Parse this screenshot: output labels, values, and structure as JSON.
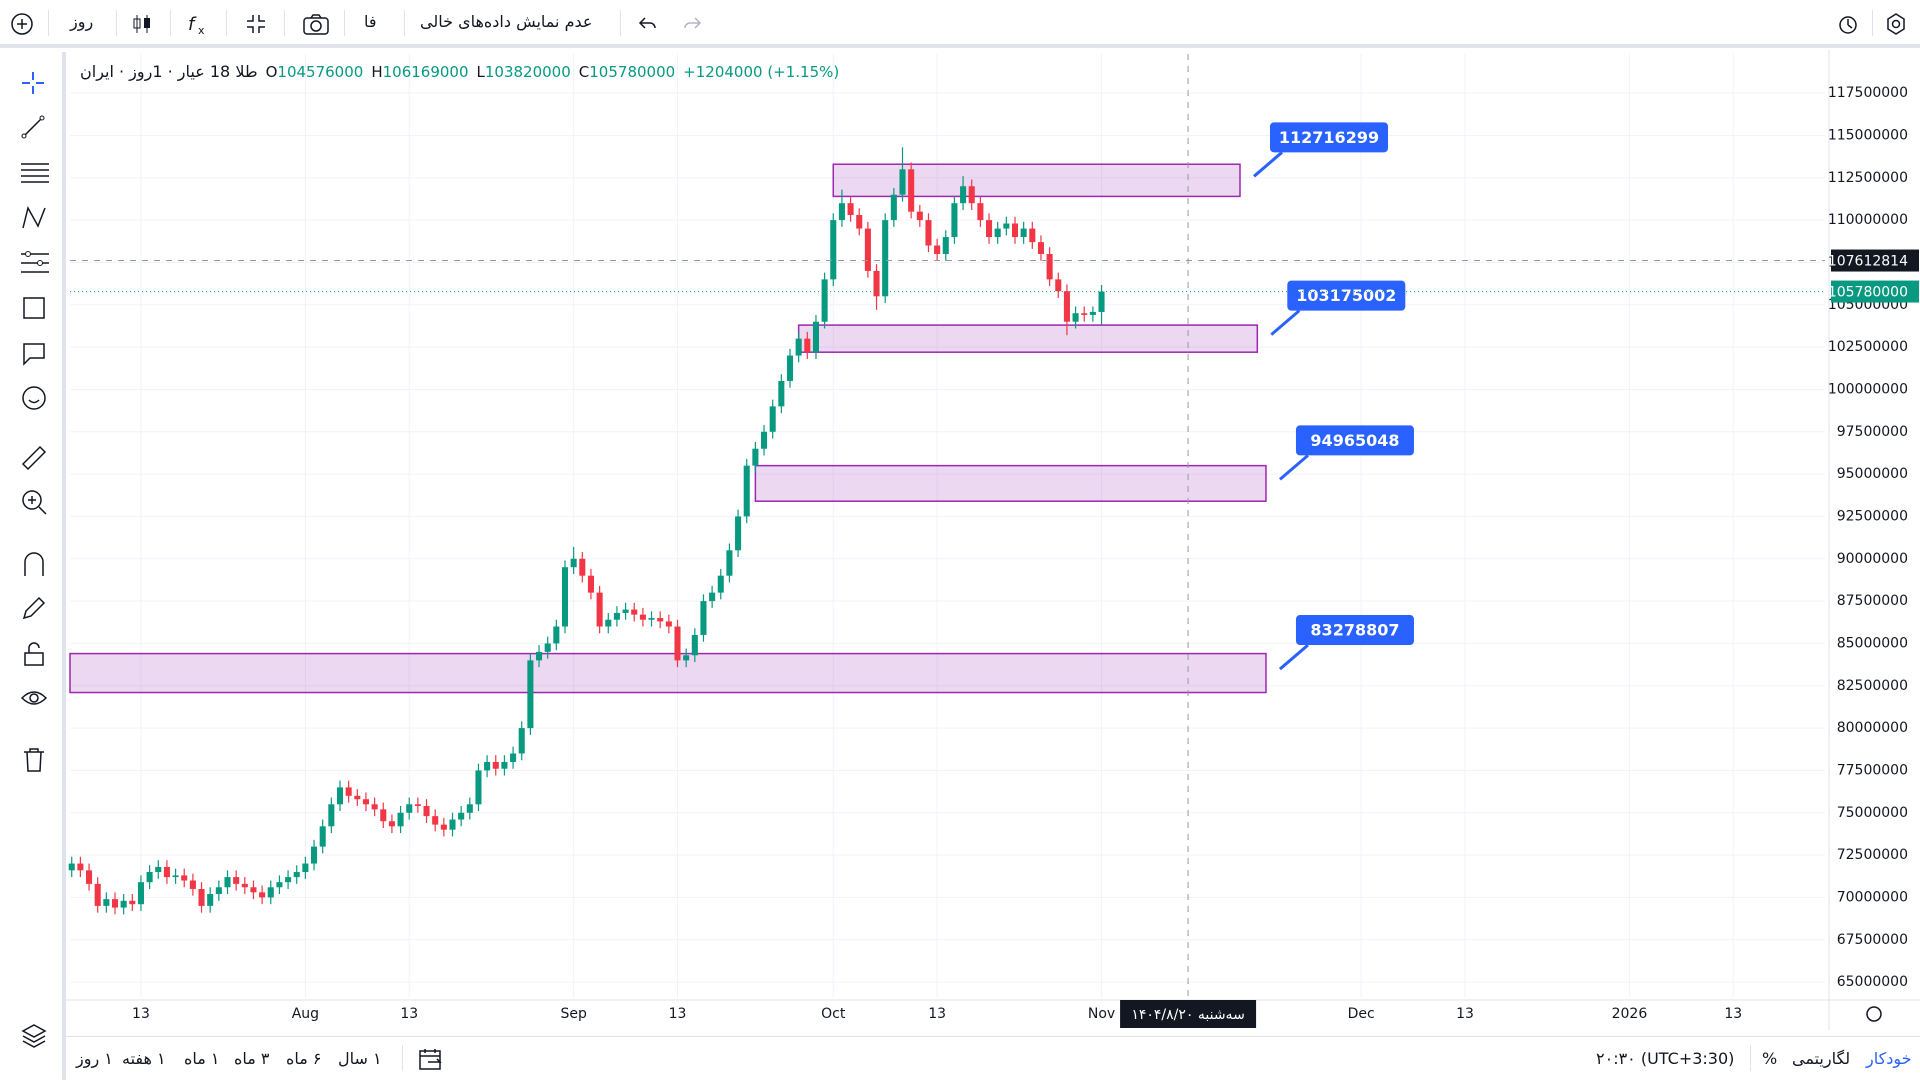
{
  "toolbar": {
    "interval": "روز",
    "language": "فا",
    "empty_data": "عدم نمایش داده‌های خالی"
  },
  "legend": {
    "title": "طلا 18 عیار · 1روز · ایران",
    "o": "O",
    "h": "H",
    "l": "L",
    "c": "C",
    "change": "+1204000 (+1.15%)"
  },
  "chart_data": {
    "type": "candlestick",
    "up_color": "#089981",
    "down_color": "#f23645",
    "x": [
      4,
      5,
      6,
      7,
      8,
      9,
      10,
      11,
      12,
      13,
      14,
      15,
      16,
      17,
      18,
      19,
      20,
      21,
      22,
      23,
      24,
      25,
      26,
      27,
      28,
      29,
      30,
      31,
      32,
      33,
      34,
      35,
      36,
      37,
      38,
      39,
      40,
      41,
      42,
      43,
      44,
      45,
      46,
      47,
      48,
      49,
      50,
      51,
      52,
      53,
      54,
      55,
      56,
      57,
      58,
      59,
      60,
      61,
      62,
      63,
      64,
      65,
      66,
      67,
      68,
      69,
      70,
      71,
      72,
      73,
      74,
      75,
      76,
      77,
      78,
      79,
      80,
      81,
      82,
      83,
      84,
      85,
      86,
      87,
      88,
      89,
      90,
      91,
      92,
      93,
      94,
      95,
      96,
      97,
      98,
      99,
      100,
      101,
      102,
      103,
      104,
      105,
      106,
      107,
      108,
      109,
      110,
      111,
      112,
      113,
      114,
      115,
      116,
      117,
      118,
      119,
      120,
      121,
      122,
      123
    ],
    "open": [
      71600000,
      72000000,
      71600000,
      70800000,
      69500000,
      69900000,
      69400000,
      69800000,
      69600000,
      70900000,
      71500000,
      71800000,
      71200000,
      71300000,
      71000000,
      70500000,
      69500000,
      70200000,
      70600000,
      71200000,
      70800000,
      70600000,
      70300000,
      70000000,
      70600000,
      70900000,
      71200000,
      71500000,
      72000000,
      73000000,
      74200000,
      75500000,
      76500000,
      76000000,
      75800000,
      75500000,
      75200000,
      74500000,
      74200000,
      75000000,
      75500000,
      75400000,
      74800000,
      74300000,
      74000000,
      74600000,
      75000000,
      75500000,
      77500000,
      78000000,
      77600000,
      78000000,
      78500000,
      80000000,
      84000000,
      84500000,
      85000000,
      86000000,
      89500000,
      90000000,
      89000000,
      88000000,
      86000000,
      86400000,
      86800000,
      87000000,
      86700000,
      86400000,
      86500000,
      86300000,
      86000000,
      84000000,
      84300000,
      85500000,
      87500000,
      88000000,
      89000000,
      90500000,
      92500000,
      95500000,
      96500000,
      97500000,
      99000000,
      100500000,
      102000000,
      103000000,
      102200000,
      104000000,
      106500000,
      110000000,
      111000000,
      110300000,
      109500000,
      107000000,
      105500000,
      110000000,
      111500000,
      113000000,
      110500000,
      110000000,
      108500000,
      108000000,
      109000000,
      111000000,
      112000000,
      111000000,
      110000000,
      109000000,
      109500000,
      109800000,
      109000000,
      109500000,
      108700000,
      108000000,
      106500000,
      105800000,
      104000000,
      104500000,
      104400000,
      104576000
    ],
    "high": [
      72400000,
      72400000,
      72000000,
      71200000,
      70300000,
      70300000,
      70200000,
      70200000,
      71300000,
      71900000,
      72200000,
      72200000,
      71700000,
      71700000,
      71400000,
      70900000,
      70600000,
      71000000,
      71600000,
      71600000,
      71200000,
      71000000,
      70700000,
      71000000,
      71300000,
      71600000,
      71900000,
      72400000,
      73400000,
      74600000,
      75900000,
      76900000,
      76900000,
      76400000,
      76200000,
      75900000,
      75600000,
      74900000,
      75400000,
      75900000,
      75900000,
      75800000,
      75200000,
      74700000,
      75000000,
      75400000,
      75900000,
      77900000,
      78400000,
      78400000,
      78400000,
      78900000,
      80400000,
      84400000,
      84900000,
      85400000,
      86400000,
      89900000,
      90700000,
      90400000,
      89400000,
      88400000,
      86800000,
      87200000,
      87400000,
      87400000,
      87100000,
      86900000,
      86900000,
      86700000,
      86400000,
      84700000,
      85900000,
      87900000,
      88400000,
      89400000,
      90900000,
      92900000,
      95900000,
      96900000,
      97900000,
      99400000,
      100900000,
      102400000,
      103400000,
      103400000,
      104400000,
      106900000,
      110400000,
      111800000,
      111400000,
      110700000,
      109900000,
      107400000,
      110400000,
      111900000,
      114300000,
      113400000,
      110900000,
      110400000,
      108900000,
      109400000,
      111400000,
      112600000,
      112400000,
      111400000,
      110400000,
      109900000,
      110200000,
      110200000,
      109900000,
      109900000,
      109100000,
      108400000,
      106900000,
      106200000,
      104900000,
      104900000,
      104900000,
      106169000
    ],
    "low": [
      71200000,
      71200000,
      70400000,
      69100000,
      69100000,
      69000000,
      69000000,
      69200000,
      69200000,
      70500000,
      71100000,
      70800000,
      70800000,
      70600000,
      70100000,
      69100000,
      69100000,
      69800000,
      70200000,
      70400000,
      70200000,
      69900000,
      69600000,
      69600000,
      70200000,
      70500000,
      70800000,
      71100000,
      71600000,
      72600000,
      73800000,
      75100000,
      75600000,
      75400000,
      75100000,
      74800000,
      74100000,
      73800000,
      73800000,
      74600000,
      75000000,
      74400000,
      73900000,
      73600000,
      73600000,
      74200000,
      74600000,
      75100000,
      77100000,
      77200000,
      77200000,
      77600000,
      78100000,
      79600000,
      83600000,
      84100000,
      84600000,
      85600000,
      89100000,
      88600000,
      87600000,
      85600000,
      85600000,
      86000000,
      86400000,
      86300000,
      86000000,
      86000000,
      85900000,
      85600000,
      83600000,
      83600000,
      83900000,
      85100000,
      87100000,
      87600000,
      88600000,
      90100000,
      92100000,
      95100000,
      96100000,
      97100000,
      98600000,
      100100000,
      101600000,
      101800000,
      101800000,
      103600000,
      106100000,
      109600000,
      109900000,
      109100000,
      106600000,
      104700000,
      105100000,
      109600000,
      111100000,
      110100000,
      109600000,
      108100000,
      107600000,
      107600000,
      108600000,
      110600000,
      110600000,
      109600000,
      108600000,
      108600000,
      109100000,
      108600000,
      108600000,
      108300000,
      107600000,
      106100000,
      105400000,
      103200000,
      103600000,
      104000000,
      104000000,
      103820000
    ],
    "close": [
      72000000,
      71600000,
      70800000,
      69500000,
      69900000,
      69400000,
      69800000,
      69600000,
      70900000,
      71500000,
      71800000,
      71200000,
      71300000,
      71000000,
      70500000,
      69500000,
      70200000,
      70600000,
      71200000,
      70800000,
      70600000,
      70300000,
      70000000,
      70600000,
      70900000,
      71200000,
      71500000,
      72000000,
      73000000,
      74200000,
      75500000,
      76500000,
      76000000,
      75800000,
      75500000,
      75200000,
      74500000,
      74200000,
      75000000,
      75500000,
      75400000,
      74800000,
      74300000,
      74000000,
      74600000,
      75000000,
      75500000,
      77500000,
      78000000,
      77600000,
      78000000,
      78500000,
      80000000,
      84000000,
      84500000,
      85000000,
      86000000,
      89500000,
      90000000,
      89000000,
      88000000,
      86000000,
      86400000,
      86800000,
      87000000,
      86700000,
      86400000,
      86500000,
      86300000,
      86000000,
      84000000,
      84300000,
      85500000,
      87500000,
      88000000,
      89000000,
      90500000,
      92500000,
      95500000,
      96500000,
      97500000,
      99000000,
      100500000,
      102000000,
      103000000,
      102200000,
      104000000,
      106500000,
      110000000,
      111000000,
      110300000,
      109500000,
      107000000,
      105500000,
      110000000,
      111500000,
      113000000,
      110500000,
      110000000,
      108500000,
      108000000,
      109000000,
      111000000,
      112000000,
      111000000,
      110000000,
      109000000,
      109500000,
      109800000,
      109000000,
      109500000,
      108700000,
      108000000,
      106500000,
      105800000,
      104000000,
      104500000,
      104400000,
      104576000,
      105780000
    ],
    "xlim": [
      3.8,
      206.6
    ],
    "xticks": [
      {
        "value": 12,
        "label": "13"
      },
      {
        "value": 31,
        "label": "Aug"
      },
      {
        "value": 43,
        "label": "13"
      },
      {
        "value": 62,
        "label": "Sep"
      },
      {
        "value": 74,
        "label": "13"
      },
      {
        "value": 92,
        "label": "Oct"
      },
      {
        "value": 104,
        "label": "13"
      },
      {
        "value": 123,
        "label": "Nov"
      },
      {
        "value": 153,
        "label": "Dec"
      },
      {
        "value": 165,
        "label": "13"
      },
      {
        "value": 184,
        "label": "2026"
      },
      {
        "value": 196,
        "label": "13"
      }
    ],
    "ylim": [
      64060000,
      119810000
    ],
    "yticks": [
      65000000,
      67500000,
      70000000,
      72500000,
      75000000,
      77500000,
      80000000,
      82500000,
      85000000,
      87500000,
      90000000,
      92500000,
      95000000,
      97500000,
      100000000,
      102500000,
      105000000,
      107500000,
      110000000,
      112500000,
      115000000,
      117500000
    ],
    "grid": true,
    "zone_color": "#9c27b0",
    "label_color": "#2962ff",
    "zones": [
      {
        "x0": 92,
        "x1": 139,
        "bottom": 111400000,
        "top": 113300000,
        "label": 112716299
      },
      {
        "x0": 88,
        "x1": 141,
        "bottom": 102200000,
        "top": 103800000,
        "label": 103175002
      },
      {
        "x0": 83,
        "x1": 142,
        "bottom": 93400000,
        "top": 95500000,
        "label": 94965048
      },
      {
        "x0": 3.8,
        "x1": 142,
        "bottom": 82100000,
        "top": 84400000,
        "label": 83278807
      }
    ],
    "crosshair": {
      "x": 133,
      "y": 107612814,
      "label": "سه‌شنبه ۱۴۰۴/۸/۲۰"
    }
  },
  "bottom_bar": {
    "ranges": [
      "۱ روز",
      "۱ هفته",
      "۱ ماه",
      "۳ ماه",
      "۶ ماه",
      "۱ سال"
    ],
    "timezone": "(UTC+3:30) ۲۰:۳۰",
    "percent": "%",
    "log": "لگاریتمی",
    "auto": "خودکار"
  }
}
